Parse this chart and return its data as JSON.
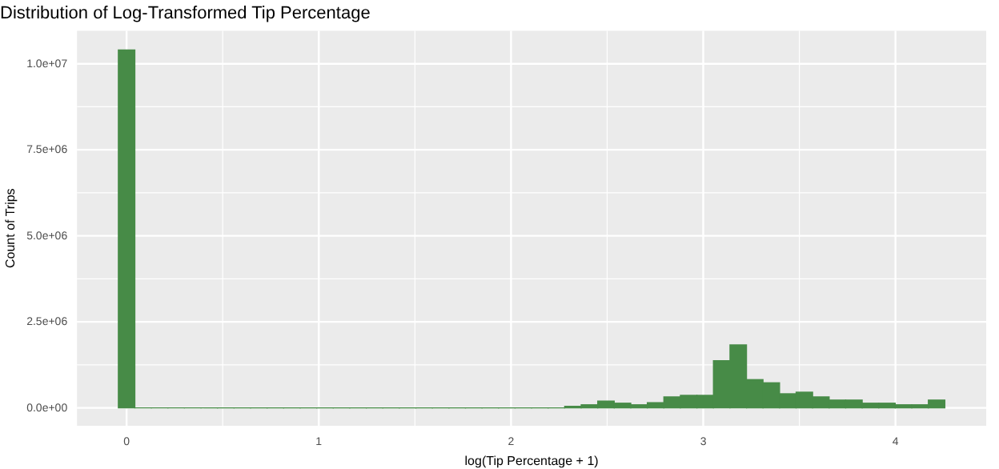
{
  "chart_data": {
    "type": "histogram",
    "title": "Distribution of Log-Transformed Tip Percentage",
    "xlabel": "log(Tip Percentage + 1)",
    "ylabel": "Count of Trips",
    "color": "#478b47",
    "bins": [
      -0.043,
      0.043,
      0.129,
      0.215,
      0.301,
      0.387,
      0.473,
      0.559,
      0.645,
      0.731,
      0.817,
      0.903,
      0.989,
      1.075,
      1.161,
      1.247,
      1.333,
      1.419,
      1.505,
      1.591,
      1.677,
      1.763,
      1.849,
      1.935,
      2.021,
      2.107,
      2.193,
      2.279,
      2.365,
      2.451,
      2.537,
      2.623,
      2.709,
      2.795,
      2.881,
      2.967,
      3.053,
      3.139,
      3.225,
      3.311,
      3.397,
      3.483,
      3.569,
      3.655,
      3.741,
      3.827,
      3.913,
      3.999,
      4.085,
      4.171,
      4.257
    ],
    "values": [
      10400000,
      0,
      0,
      0,
      0,
      0,
      0,
      0,
      0,
      0,
      0,
      0,
      0,
      0,
      0,
      0,
      0,
      0,
      0,
      0,
      0,
      0,
      0,
      0,
      0,
      0,
      0,
      46000,
      91000,
      198000,
      137000,
      91000,
      152000,
      320000,
      365000,
      365000,
      1370000,
      1830000,
      822000,
      730000,
      411000,
      457000,
      320000,
      228000,
      228000,
      137000,
      137000,
      91000,
      91000,
      228000
    ],
    "xlim": [
      -0.258,
      4.472
    ],
    "xticks": [
      0,
      1,
      2,
      3,
      4
    ],
    "ylim": [
      -520000,
      10960000
    ],
    "yticks": [
      {
        "value": 0,
        "label": "0.0e+00"
      },
      {
        "value": 2500000,
        "label": "2.5e+06"
      },
      {
        "value": 5000000,
        "label": "5.0e+06"
      },
      {
        "value": 7500000,
        "label": "7.5e+06"
      },
      {
        "value": 10000000,
        "label": "1.0e+07"
      }
    ],
    "grid": true,
    "legend": false
  }
}
